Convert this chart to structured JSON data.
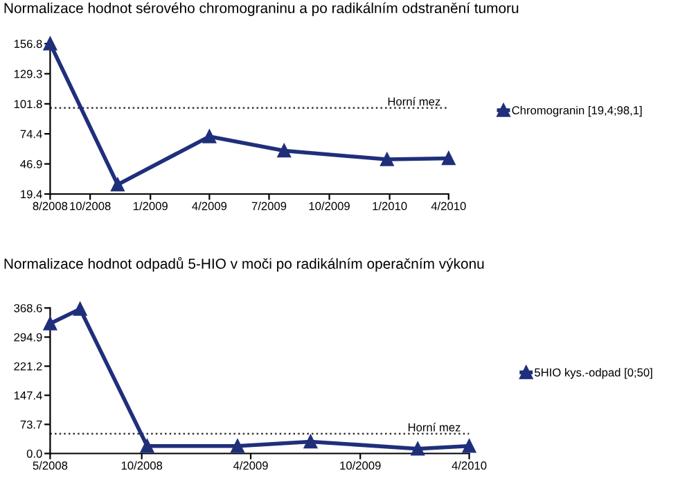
{
  "chart_data": [
    {
      "type": "line",
      "title": "Normalizace hodnot sérového chromograninu a po radikálním odstranění tumoru",
      "x": [
        "2008-08-01",
        "2008-11-12",
        "2009-04-01",
        "2009-07-24",
        "2009-12-28",
        "2010-04-01"
      ],
      "series": [
        {
          "name": "Chromogranin [19,4;98,1]",
          "color": "#1f2f7a",
          "values": [
            156.8,
            28,
            72,
            59,
            51,
            52
          ]
        }
      ],
      "xlim": [
        "2008-08-01",
        "2010-04-01"
      ],
      "xticks": [
        {
          "value": "2008-08-01",
          "label": "8/2008"
        },
        {
          "value": "2008-10-01",
          "label": "10/2008"
        },
        {
          "value": "2009-01-01",
          "label": "1/2009"
        },
        {
          "value": "2009-04-01",
          "label": "4/2009"
        },
        {
          "value": "2009-07-01",
          "label": "7/2009"
        },
        {
          "value": "2009-10-01",
          "label": "10/2009"
        },
        {
          "value": "2010-01-01",
          "label": "1/2010"
        },
        {
          "value": "2010-04-01",
          "label": "4/2010"
        }
      ],
      "ylim": [
        19.4,
        156.8
      ],
      "yticks": [
        19.4,
        46.9,
        74.4,
        101.8,
        129.3,
        156.8
      ],
      "ref_lines": [
        {
          "axis": "y",
          "value": 98.1,
          "label": "Horní mez",
          "color": "#333333",
          "line_style": "dotted"
        }
      ],
      "marker": "triangle",
      "line_style": "solid",
      "grid": false,
      "legend": "right"
    },
    {
      "type": "line",
      "title": "Normalizace hodnot odpadů 5-HIO v moči po radikálním operačním výkonu",
      "x": [
        "2008-05-01",
        "2008-06-20",
        "2008-10-10",
        "2009-03-10",
        "2009-07-10",
        "2010-01-05",
        "2010-04-01"
      ],
      "series": [
        {
          "name": "5HIO kys.-odpad [0;50]",
          "color": "#1f2f7a",
          "values": [
            329,
            366,
            19,
            19,
            30,
            12,
            19
          ]
        }
      ],
      "xlim": [
        "2008-05-01",
        "2010-04-01"
      ],
      "xticks": [
        {
          "value": "2008-05-01",
          "label": "5/2008"
        },
        {
          "value": "2008-10-01",
          "label": "10/2008"
        },
        {
          "value": "2009-04-01",
          "label": "4/2009"
        },
        {
          "value": "2009-10-01",
          "label": "10/2009"
        },
        {
          "value": "2010-04-01",
          "label": "4/2010"
        }
      ],
      "ylim": [
        0,
        368.6
      ],
      "yticks": [
        {
          "value": 0,
          "label": "0.0"
        },
        73.7,
        147.4,
        221.2,
        294.9,
        368.6
      ],
      "ref_lines": [
        {
          "axis": "y",
          "value": 50,
          "label": "Horní mez",
          "color": "#333333",
          "line_style": "dotted"
        }
      ],
      "marker": "triangle",
      "line_style": "solid",
      "grid": false,
      "legend": "right"
    }
  ]
}
